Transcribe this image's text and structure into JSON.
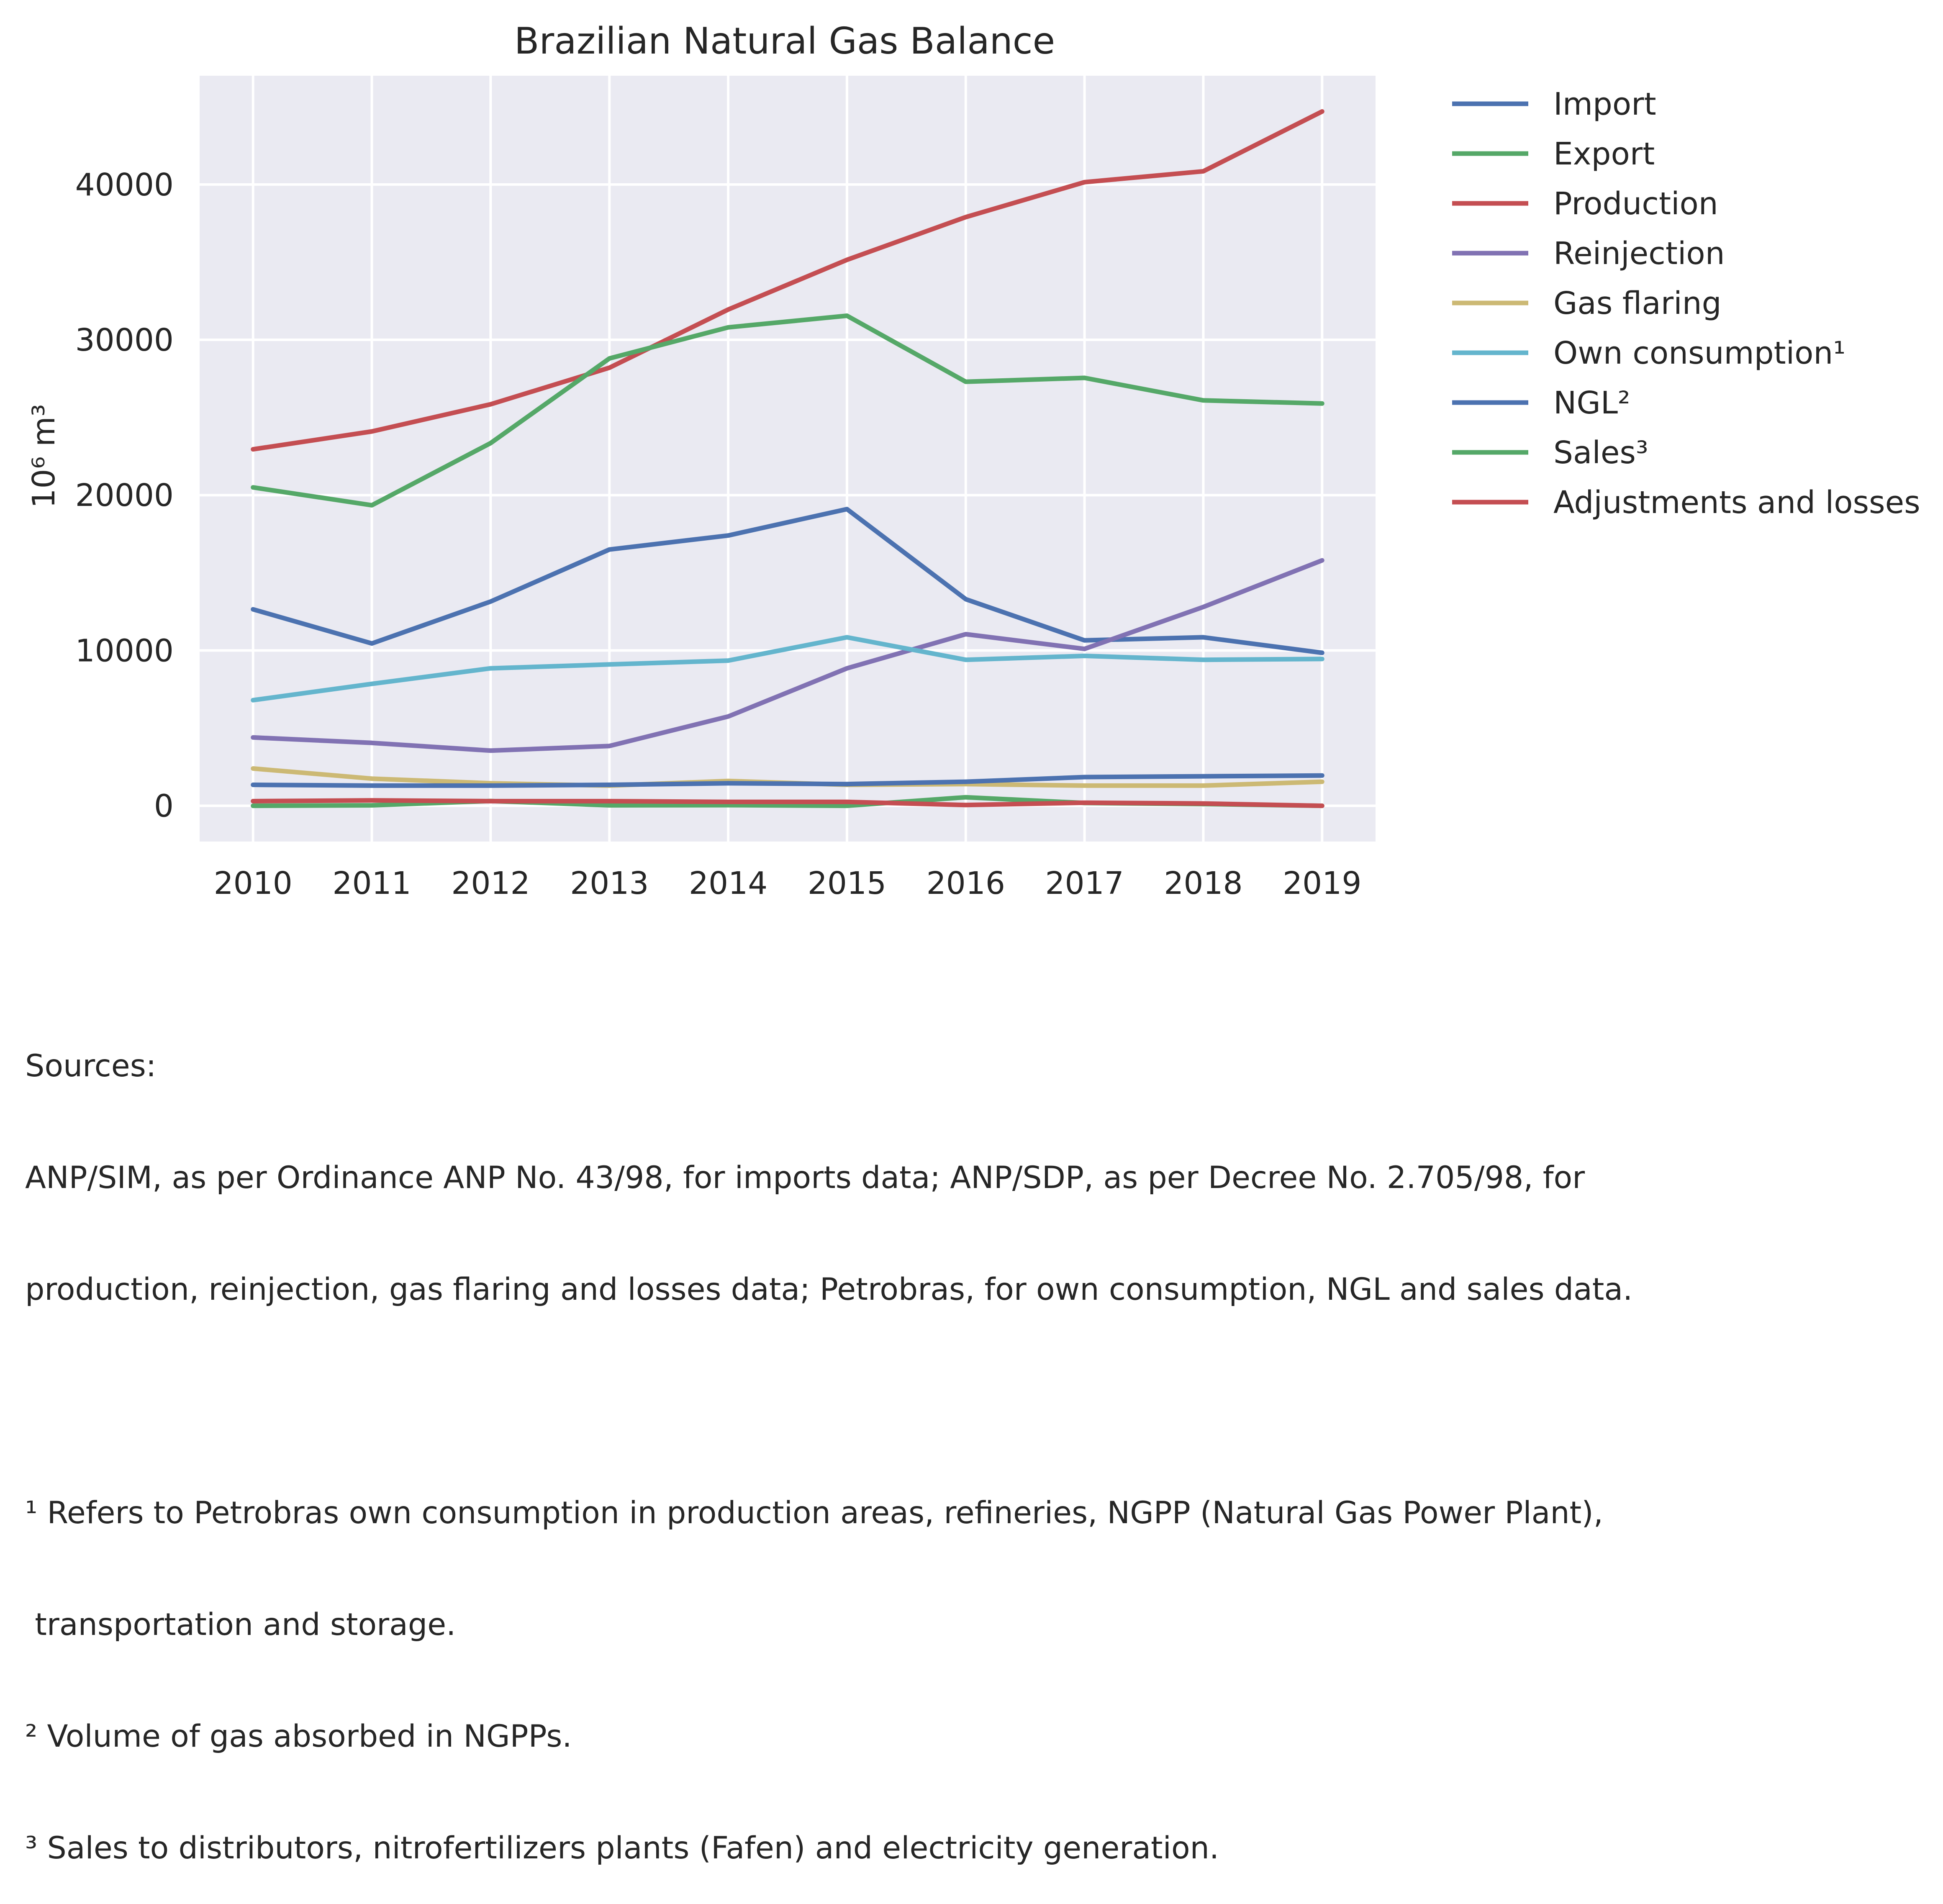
{
  "chart_data": {
    "type": "line",
    "title": "Brazilian Natural Gas Balance",
    "xlabel": "",
    "ylabel": "10⁶ m³",
    "x": [
      "2010",
      "2011",
      "2012",
      "2013",
      "2014",
      "2015",
      "2016",
      "2017",
      "2018",
      "2019"
    ],
    "xlim": [
      2009.55,
      2019.45
    ],
    "ylim": [
      -2300,
      47000
    ],
    "yticks": [
      0,
      10000,
      20000,
      30000,
      40000
    ],
    "ytick_labels": [
      "0",
      "10000",
      "20000",
      "30000",
      "40000"
    ],
    "grid": true,
    "legend_position": "outside right, top",
    "series": [
      {
        "name": "Import",
        "color": "#4c72b0",
        "values": [
          12650,
          10450,
          13150,
          16500,
          17400,
          19100,
          13300,
          10650,
          10850,
          9850
        ]
      },
      {
        "name": "Export",
        "color": "#55a868",
        "values": [
          0,
          30,
          310,
          30,
          40,
          0,
          550,
          180,
          110,
          0
        ]
      },
      {
        "name": "Production",
        "color": "#c44e52",
        "values": [
          22950,
          24100,
          25850,
          28200,
          31950,
          35150,
          37900,
          40150,
          40850,
          44700
        ]
      },
      {
        "name": "Reinjection",
        "color": "#8172b3",
        "values": [
          4400,
          4050,
          3550,
          3850,
          5750,
          8850,
          11050,
          10100,
          12800,
          15800
        ]
      },
      {
        "name": "Gas flaring",
        "color": "#ccb974",
        "values": [
          2400,
          1750,
          1450,
          1300,
          1600,
          1350,
          1400,
          1300,
          1300,
          1550
        ]
      },
      {
        "name": "Own consumption¹",
        "color": "#64b5cd",
        "values": [
          6800,
          7850,
          8850,
          9100,
          9350,
          10850,
          9400,
          9650,
          9400,
          9450
        ]
      },
      {
        "name": "NGL²",
        "color": "#4c72b0",
        "values": [
          1350,
          1300,
          1300,
          1350,
          1450,
          1400,
          1550,
          1850,
          1900,
          1950
        ]
      },
      {
        "name": "Sales³",
        "color": "#55a868",
        "values": [
          20500,
          19350,
          23350,
          28800,
          30800,
          31550,
          27300,
          27550,
          26100,
          25900
        ]
      },
      {
        "name": "Adjustments and losses",
        "color": "#c44e52",
        "values": [
          300,
          350,
          300,
          300,
          250,
          250,
          50,
          200,
          150,
          0
        ]
      }
    ]
  },
  "notes": {
    "sources_heading": "Sources:",
    "sources_line1": "ANP/SIM, as per Ordinance ANP No. 43/98, for imports data; ANP/SDP, as per Decree No. 2.705/98, for",
    "sources_line2": "production, reinjection, gas flaring and losses data; Petrobras, for own consumption, NGL and sales data.",
    "footnote1_line1": "¹ Refers to Petrobras own consumption in production areas, refineries, NGPP (Natural Gas Power Plant),",
    "footnote1_line2": " transportation and storage.",
    "footnote2": "² Volume of gas absorbed in NGPPs.",
    "footnote3": "³ Sales to distributors, nitrofertilizers plants (Fafen) and electricity generation."
  },
  "colors": {
    "plot_background": "#eaeaf2",
    "grid": "#ffffff",
    "text": "#262626"
  }
}
